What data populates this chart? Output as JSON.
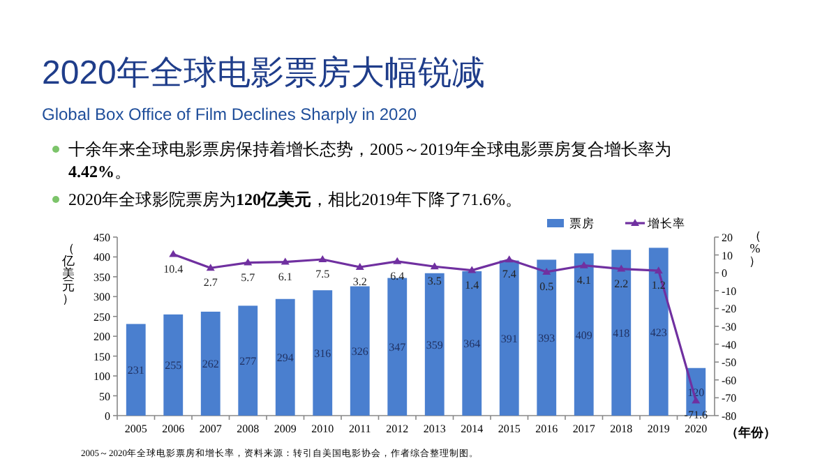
{
  "chart_data": {
    "type": "bar",
    "title": "2020年全球电影票房大幅锐减",
    "subtitle": "Global Box Office of Film Declines Sharply in 2020",
    "annotations": [
      "十余年来全球电影票房保持着增长态势，2005～2019年全球电影票房复合增长率为**4.42%**。",
      "2020年全球影院票房为**120亿美元**，相比2019年下降了71.6%。",
      "2005～2020年全球电影票房和增长率，资料来源：转引自美国电影协会，作者综合整理制图。"
    ],
    "xlabel": "（年份）",
    "ylabel": "（亿美元）",
    "y2label": "（%）",
    "categories": [
      "2005",
      "2006",
      "2007",
      "2008",
      "2009",
      "2010",
      "2011",
      "2012",
      "2013",
      "2014",
      "2015",
      "2016",
      "2017",
      "2018",
      "2019",
      "2020"
    ],
    "series": [
      {
        "name": "票房",
        "color": "#4a7fcf",
        "values": [
          231,
          255,
          262,
          277,
          294,
          316,
          326,
          347,
          359,
          364,
          391,
          393,
          409,
          418,
          423,
          120
        ]
      },
      {
        "name": "增长率",
        "type": "line",
        "axis": "y2",
        "color": "#7030a0",
        "marker": "triangle",
        "values": [
          null,
          10.4,
          2.7,
          5.7,
          6.1,
          7.5,
          3.2,
          6.4,
          3.5,
          1.4,
          7.4,
          0.5,
          4.1,
          2.2,
          1.2,
          -71.6
        ]
      }
    ],
    "data_labels": true,
    "legend": "top right",
    "ylim": [
      0,
      450
    ],
    "yticks": [
      0,
      50,
      100,
      150,
      200,
      250,
      300,
      350,
      400,
      450
    ],
    "y2lim": [
      -80,
      20
    ],
    "y2ticks": [
      -80,
      -70,
      -60,
      -50,
      -40,
      -30,
      -20,
      -10,
      0,
      10,
      20
    ]
  }
}
